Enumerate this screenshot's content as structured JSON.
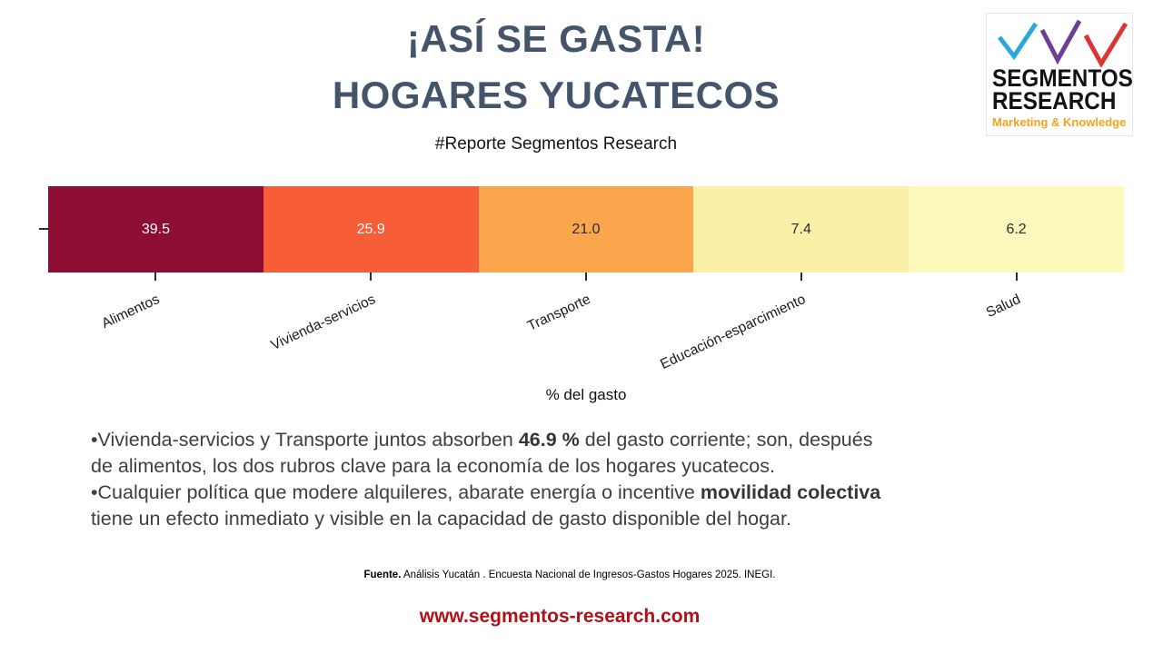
{
  "header": {
    "title_line1": "¡ASÍ SE GASTA!",
    "title_line2": "HOGARES YUCATECOS",
    "subtitle": "#Reporte Segmentos Research",
    "title_color": "#44546a"
  },
  "logo": {
    "name_line1": "SEGMENTOS",
    "name_line2": "RESEARCH",
    "tagline": "Marketing & Knowledge",
    "tagline_color": "#f6a21c",
    "check_colors": [
      "#29a8dc",
      "#6e3d96",
      "#dd3434"
    ]
  },
  "chart_data": {
    "type": "bar",
    "subtype": "horizontal-equal-width-segments",
    "categories": [
      "Alimentos",
      "Vivienda-servicios",
      "Transporte",
      "Educación-esparcimiento",
      "Salud"
    ],
    "values": [
      39.5,
      25.9,
      21.0,
      7.4,
      6.2
    ],
    "value_labels": [
      "39.5",
      "25.9",
      "21.0",
      "7.4",
      "6.2"
    ],
    "colors": [
      "#8e0d34",
      "#f85d3a",
      "#fba64c",
      "#faf0a7",
      "#fdf9bd"
    ],
    "value_label_colors": [
      "#ffffff",
      "#ffffff",
      "#2b2b2b",
      "#2b2b2b",
      "#2b2b2b"
    ],
    "xlabel": "% del gasto",
    "title": "",
    "legend": false,
    "grid": false,
    "category_label_rotation_deg": 25
  },
  "insights": {
    "lines": [
      [
        {
          "t": "•Vivienda-servicios y Transporte juntos absorben ",
          "b": false
        },
        {
          "t": "46.9 %",
          "b": true
        },
        {
          "t": " del gasto corriente; son, después",
          "b": false
        }
      ],
      [
        {
          "t": "de alimentos, los dos rubros clave para la economía de los hogares yucatecos.",
          "b": false
        }
      ],
      [
        {
          "t": "•Cualquier política que modere alquileres, abarate energía o incentive ",
          "b": false
        },
        {
          "t": "movilidad colectiva",
          "b": true
        }
      ],
      [
        {
          "t": "tiene un efecto inmediato y visible en la capacidad de gasto disponible del hogar.",
          "b": false
        }
      ]
    ]
  },
  "source": {
    "label": "Fuente.",
    "text": " Análisis Yucatán . Encuesta Nacional de Ingresos-Gastos Hogares 2025. INEGI."
  },
  "footer": {
    "url": "www.segmentos-research.com",
    "color": "#b01016"
  }
}
